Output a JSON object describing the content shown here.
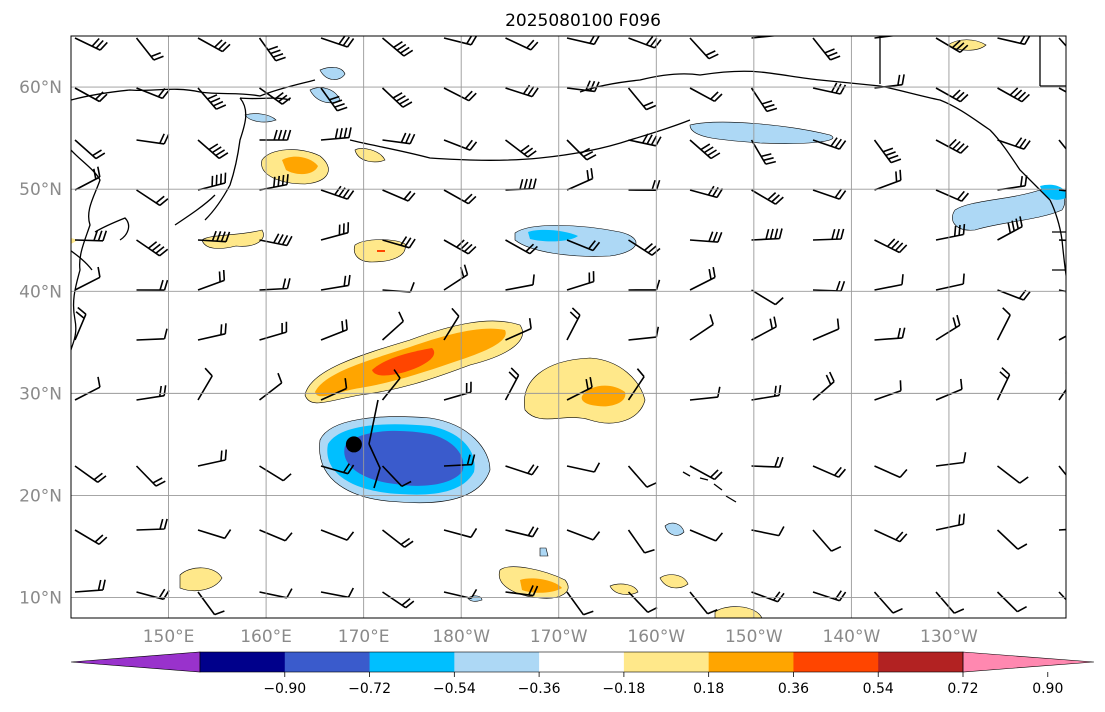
{
  "map": {
    "title": "2025080100 F096",
    "lat_ticks": [
      "60°N",
      "50°N",
      "40°N",
      "30°N",
      "20°N",
      "10°N"
    ],
    "lon_ticks": [
      "150°E",
      "160°E",
      "170°E",
      "180°W",
      "170°W",
      "160°W",
      "150°W",
      "140°W",
      "130°W"
    ],
    "extent": {
      "lon_min": 140,
      "lon_max": 242,
      "lat_min": 8,
      "lat_max": 65
    },
    "typhoon_marker": {
      "lon": 169,
      "lat": 25
    },
    "grid": true
  },
  "colorbar": {
    "labels": [
      "−0.90",
      "−0.72",
      "−0.54",
      "−0.36",
      "−0.18",
      "0.18",
      "0.36",
      "0.54",
      "0.72",
      "0.90"
    ],
    "colors": [
      "#9932CC",
      "#00008B",
      "#3A5BCC",
      "#00BFFF",
      "#ADD8F5",
      "#FFFFFF",
      "#FFE88A",
      "#FFA500",
      "#FF4500",
      "#B22222",
      "#FF88B0"
    ]
  }
}
